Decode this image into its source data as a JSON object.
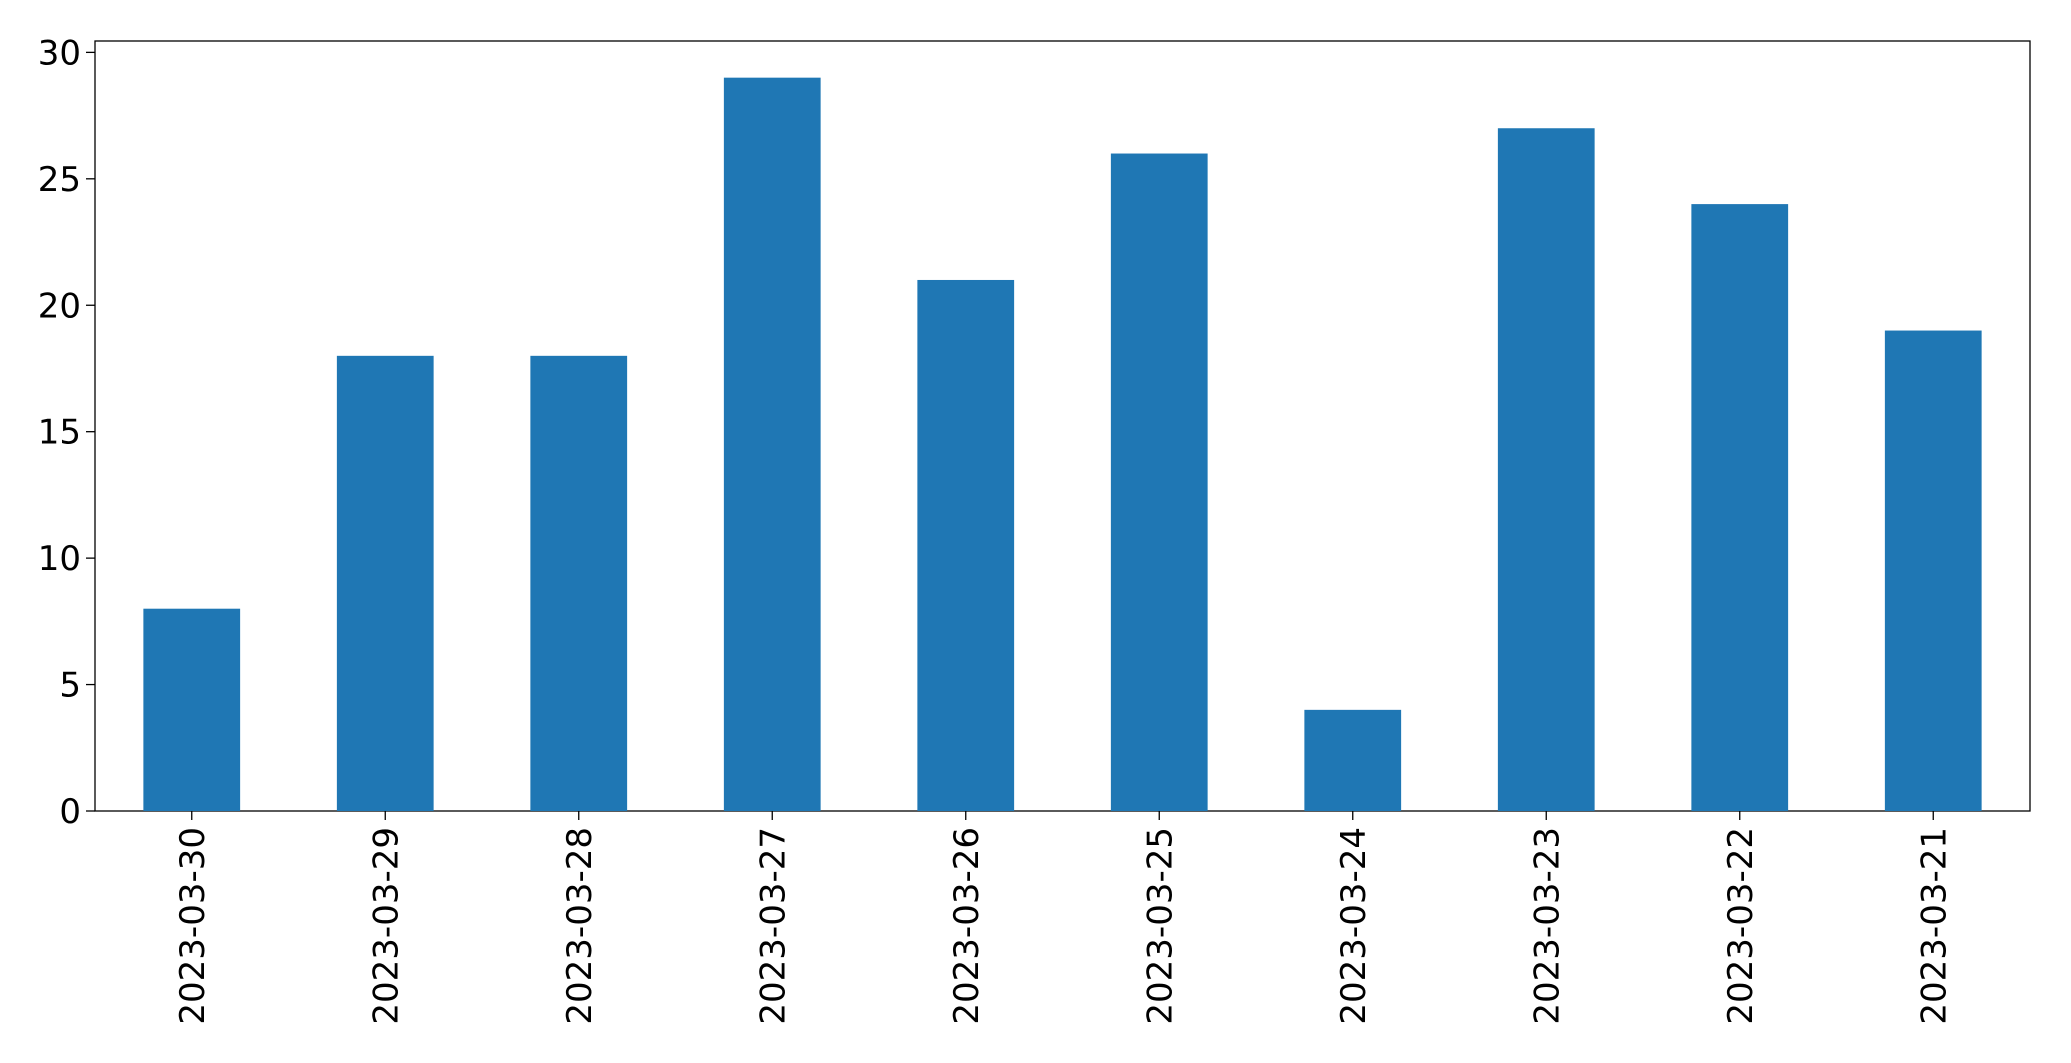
{
  "chart_data": {
    "type": "bar",
    "categories": [
      "2023-03-30",
      "2023-03-29",
      "2023-03-28",
      "2023-03-27",
      "2023-03-26",
      "2023-03-25",
      "2023-03-24",
      "2023-03-23",
      "2023-03-22",
      "2023-03-21"
    ],
    "values": [
      8,
      18,
      18,
      29,
      21,
      26,
      4,
      27,
      24,
      19
    ],
    "color": "#1f77b4",
    "ylim": [
      0,
      30.45
    ],
    "yticks": [
      0,
      5,
      10,
      15,
      20,
      25,
      30
    ],
    "grid": false
  }
}
